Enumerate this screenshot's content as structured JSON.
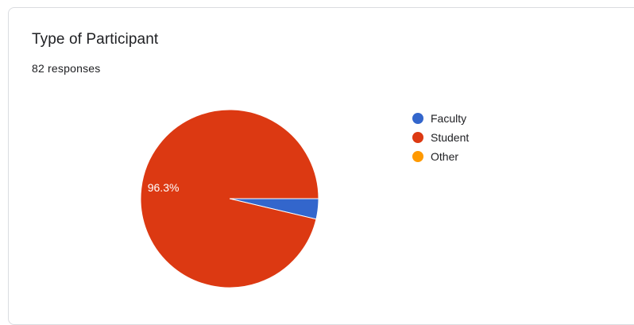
{
  "card": {
    "title": "Type of Participant",
    "responses": "82 responses"
  },
  "chart_data": {
    "type": "pie",
    "slices": [
      {
        "label": "Faculty",
        "value": 3.7,
        "color": "#3366cc"
      },
      {
        "label": "Student",
        "value": 96.3,
        "color": "#dc3912"
      },
      {
        "label": "Other",
        "value": 0,
        "color": "#ff9900"
      }
    ],
    "data_labels": [
      {
        "slice": "Student",
        "text": "96.3%"
      }
    ],
    "legend_position": "right"
  }
}
